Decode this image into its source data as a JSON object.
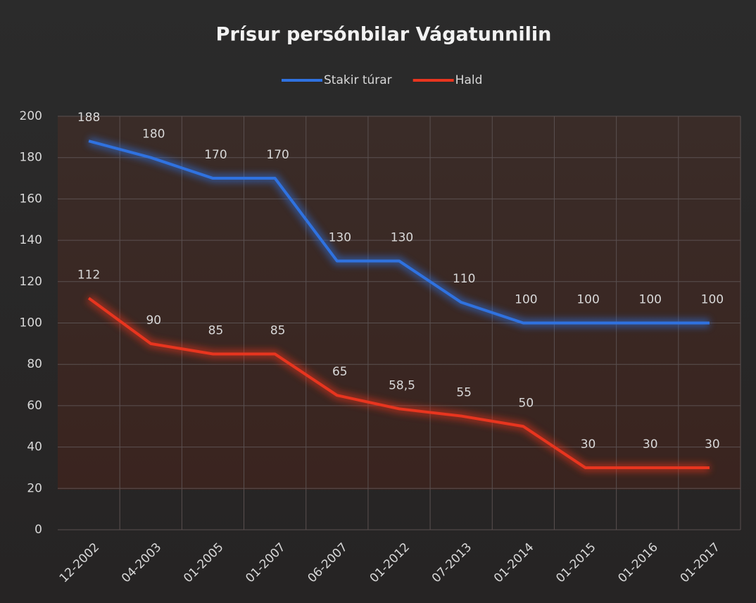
{
  "chart_data": {
    "type": "line",
    "title": "Prísur persónbilar Vágatunnilin",
    "categories": [
      "12-2002",
      "04-2003",
      "01-2005",
      "01-2007",
      "06-2007",
      "01-2012",
      "07-2013",
      "01-2014",
      "01-2015",
      "01-2016",
      "01-2017"
    ],
    "series": [
      {
        "name": "Stakir túrar",
        "color": "#2f72e0",
        "values": [
          188,
          180,
          170,
          170,
          130,
          130,
          110,
          100,
          100,
          100,
          100
        ]
      },
      {
        "name": "Hald",
        "color": "#e8351f",
        "values": [
          112,
          90,
          85,
          85,
          65,
          58.5,
          55,
          50,
          30,
          30,
          30
        ],
        "value_labels": [
          "112",
          "90",
          "85",
          "85",
          "65",
          "58,5",
          "55",
          "50",
          "30",
          "30",
          "30"
        ]
      }
    ],
    "ylim": [
      0,
      200
    ],
    "yticks": [
      0,
      20,
      40,
      60,
      80,
      100,
      120,
      140,
      160,
      180,
      200
    ],
    "grid": true,
    "legend": "top"
  }
}
